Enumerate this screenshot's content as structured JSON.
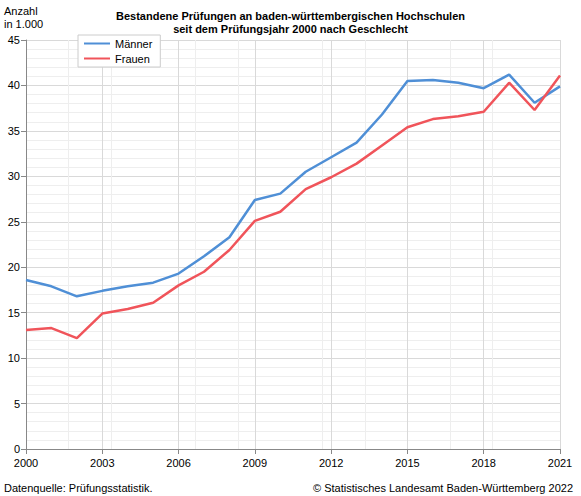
{
  "chart_data": {
    "type": "line",
    "title": "Bestandene Prüfungen an baden-württembergischen Hochschulen\nseit dem Prüfungsjahr 2000 nach Geschlecht",
    "y_label": "Anzahl\nin 1.000",
    "source": "Datenquelle: Prüfungsstatistik.",
    "copyright": "© Statistisches Landesamt Baden-Württemberg 2022",
    "x": [
      2000,
      2001,
      2002,
      2003,
      2004,
      2005,
      2006,
      2007,
      2008,
      2009,
      2010,
      2011,
      2012,
      2013,
      2014,
      2015,
      2016,
      2017,
      2018,
      2019,
      2020,
      2021
    ],
    "series": [
      {
        "name": "Männer",
        "color": "#4f8fd6",
        "values": [
          18.6,
          17.9,
          16.8,
          17.4,
          17.9,
          18.3,
          19.3,
          21.2,
          23.3,
          27.4,
          28.1,
          30.5,
          32.1,
          33.7,
          36.8,
          40.5,
          40.6,
          40.3,
          39.7,
          41.2,
          38.1,
          39.9
        ]
      },
      {
        "name": "Frauen",
        "color": "#f0545a",
        "values": [
          13.1,
          13.3,
          12.2,
          14.9,
          15.4,
          16.1,
          18.0,
          19.5,
          21.9,
          25.1,
          26.1,
          28.6,
          29.9,
          31.4,
          33.4,
          35.4,
          36.3,
          36.6,
          37.1,
          40.3,
          37.3,
          41.1
        ]
      }
    ],
    "xlim": [
      2000,
      2021
    ],
    "xticks": [
      2000,
      2003,
      2006,
      2009,
      2012,
      2015,
      2018,
      2021
    ],
    "ylim": [
      0,
      45
    ],
    "yticks": [
      0,
      5,
      10,
      15,
      20,
      25,
      30,
      35,
      40,
      45
    ],
    "grid": true,
    "legend": "upper left"
  }
}
